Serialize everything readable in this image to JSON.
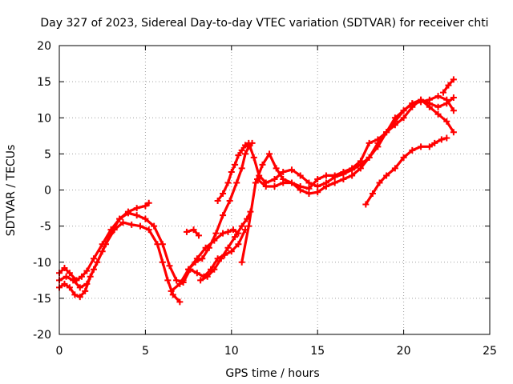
{
  "chart_data": {
    "type": "scatter",
    "title": "Day 327 of 2023, Sidereal Day-to-day VTEC variation (SDTVAR) for receiver chti",
    "xlabel": "GPS time / hours",
    "ylabel": "SDTVAR / TECUs",
    "xlim": [
      0,
      25
    ],
    "ylim": [
      -20,
      20
    ],
    "xticks": [
      "0",
      "5",
      "10",
      "15",
      "20",
      "25"
    ],
    "yticks": [
      "-20",
      "-15",
      "-10",
      "-5",
      "0",
      "5",
      "10",
      "15",
      "20"
    ],
    "xtick_values": [
      0,
      5,
      10,
      15,
      20,
      25
    ],
    "ytick_values": [
      -20,
      -15,
      -10,
      -5,
      0,
      5,
      10,
      15,
      20
    ],
    "grid": true,
    "marker": "plus",
    "color": "#ff0000",
    "series": [
      {
        "x": [
          0,
          0.3,
          0.6,
          1.0,
          1.3,
          1.6,
          2.0,
          2.5,
          3.0,
          3.5,
          4.0,
          4.5,
          5.0,
          5.2
        ],
        "y": [
          -11.5,
          -10.8,
          -11.5,
          -12.5,
          -12.0,
          -11.2,
          -9.5,
          -7.5,
          -5.5,
          -4.0,
          -3.0,
          -2.5,
          -2.2,
          -1.8
        ]
      },
      {
        "x": [
          0,
          0.3,
          0.6,
          0.9,
          1.2,
          1.5,
          1.8,
          2.2,
          2.7,
          3.2,
          3.7,
          4.2,
          4.7,
          5.2,
          5.7,
          6.0,
          6.3,
          6.6,
          7.0
        ],
        "y": [
          -13.5,
          -13.0,
          -13.5,
          -14.5,
          -14.8,
          -14.0,
          -12.0,
          -10.0,
          -7.5,
          -5.5,
          -4.5,
          -4.8,
          -5.0,
          -5.5,
          -7.5,
          -10.0,
          -12.5,
          -14.5,
          -15.5
        ]
      },
      {
        "x": [
          0,
          0.4,
          0.8,
          1.2,
          1.6,
          2.0,
          2.5,
          3.0,
          3.5,
          4.0,
          4.5,
          5.0,
          5.5,
          6.0,
          6.4,
          6.8,
          7.2,
          7.6
        ],
        "y": [
          -12.5,
          -12.0,
          -12.5,
          -13.5,
          -13.0,
          -11.0,
          -8.5,
          -6.0,
          -4.0,
          -3.2,
          -3.5,
          -4.0,
          -5.0,
          -7.5,
          -10.5,
          -12.5,
          -12.8,
          -11.0
        ]
      },
      {
        "x": [
          6.5,
          7.0,
          7.5,
          8.0,
          8.5,
          9.0,
          9.5,
          9.8,
          10.1,
          10.4
        ],
        "y": [
          -14.0,
          -13.0,
          -11.0,
          -9.5,
          -8.0,
          -7.0,
          -6.0,
          -5.8,
          -5.5,
          -6.0
        ]
      },
      {
        "x": [
          7.2,
          7.6,
          8.0,
          8.4,
          8.8,
          9.2,
          9.6,
          10.0,
          10.4,
          10.8
        ],
        "y": [
          -12.5,
          -11.0,
          -11.5,
          -12.0,
          -11.0,
          -9.5,
          -9.0,
          -8.5,
          -7.5,
          -5.5
        ]
      },
      {
        "x": [
          7.5,
          7.9,
          8.3,
          8.7,
          9.1,
          9.5,
          9.9,
          10.3,
          10.6,
          10.8,
          11.0,
          11.2
        ],
        "y": [
          -11.0,
          -10.0,
          -9.5,
          -8.0,
          -6.0,
          -3.5,
          -1.5,
          1.0,
          3.0,
          5.0,
          6.0,
          6.5
        ]
      },
      {
        "x": [
          7.4,
          7.8,
          8.1
        ],
        "y": [
          -5.8,
          -5.5,
          -6.3
        ]
      },
      {
        "x": [
          8.2,
          8.6,
          9.0,
          9.4,
          9.8,
          10.2,
          10.6,
          10.9,
          11.1
        ],
        "y": [
          -12.5,
          -12.0,
          -11.0,
          -9.5,
          -8.0,
          -6.5,
          -5.0,
          -4.0,
          -3.0
        ]
      },
      {
        "x": [
          9.2,
          9.5,
          9.8,
          10.0,
          10.2,
          10.4,
          10.6,
          10.8,
          11.0,
          11.3,
          11.6,
          12.0,
          12.5,
          13.0,
          13.5,
          14.0,
          14.5,
          15.0,
          15.5,
          16.0,
          16.5,
          17.0,
          17.5,
          18.0,
          18.5,
          19.0,
          19.5,
          20.0,
          20.5,
          21.0,
          21.5,
          22.0,
          22.5,
          22.9
        ],
        "y": [
          -1.5,
          -0.5,
          1.0,
          2.5,
          3.5,
          4.8,
          5.5,
          6.2,
          6.5,
          4.5,
          2.0,
          1.0,
          1.5,
          2.5,
          2.8,
          2.0,
          1.0,
          0.5,
          1.0,
          1.8,
          2.2,
          2.8,
          3.5,
          4.5,
          6.5,
          8.0,
          9.5,
          11.0,
          12.0,
          12.5,
          12.0,
          11.5,
          12.0,
          12.8
        ]
      },
      {
        "x": [
          10.6,
          11.0,
          11.4,
          11.8,
          12.2,
          12.6,
          13.0,
          13.5,
          14.0,
          14.5,
          15.0,
          15.5,
          16.0,
          16.5,
          17.0,
          17.5,
          18.0,
          18.5,
          19.0,
          19.5,
          20.0,
          20.5,
          21.0,
          21.5,
          22.0,
          22.5,
          22.9
        ],
        "y": [
          -10.0,
          -5.0,
          1.0,
          3.5,
          5.0,
          3.0,
          1.5,
          1.0,
          0.0,
          -0.5,
          -0.3,
          0.5,
          1.0,
          1.5,
          2.0,
          3.0,
          4.5,
          6.0,
          8.0,
          10.0,
          11.0,
          12.0,
          12.2,
          12.5,
          13.0,
          12.5,
          11.0
        ]
      },
      {
        "x": [
          11.5,
          12.0,
          12.5,
          13.0,
          13.5,
          14.0,
          14.5,
          15.0,
          15.5,
          16.0,
          16.5,
          17.0,
          17.5,
          18.0,
          18.5,
          19.0,
          19.5,
          20.0,
          20.5,
          21.0,
          21.5,
          22.0,
          22.5,
          22.9
        ],
        "y": [
          1.5,
          0.5,
          0.5,
          1.0,
          1.0,
          0.5,
          0.2,
          1.5,
          2.0,
          2.0,
          2.5,
          3.0,
          4.0,
          6.5,
          7.0,
          8.0,
          9.0,
          10.0,
          11.5,
          12.5,
          11.5,
          10.5,
          9.5,
          8.0
        ]
      },
      {
        "x": [
          17.8,
          18.2,
          18.6,
          19.0,
          19.5,
          20.0,
          20.5,
          21.0,
          21.5,
          21.8,
          22.2,
          22.5
        ],
        "y": [
          -2.0,
          -0.5,
          1.0,
          2.0,
          3.0,
          4.5,
          5.5,
          6.0,
          6.0,
          6.5,
          7.0,
          7.2
        ]
      },
      {
        "x": [
          22.3,
          22.6,
          22.9
        ],
        "y": [
          13.5,
          14.5,
          15.3
        ]
      }
    ]
  }
}
